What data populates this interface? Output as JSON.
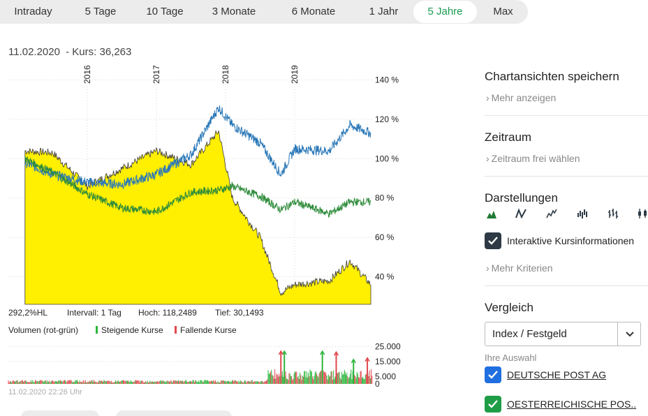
{
  "tabs": [
    {
      "label": "Intraday",
      "active": false
    },
    {
      "label": "5 Tage",
      "active": false
    },
    {
      "label": "10 Tage",
      "active": false
    },
    {
      "label": "3 Monate",
      "active": false
    },
    {
      "label": "6 Monate",
      "active": false
    },
    {
      "label": "1 Jahr",
      "active": false
    },
    {
      "label": "5 Jahre",
      "active": true
    },
    {
      "label": "Max",
      "active": false
    }
  ],
  "header": {
    "date": "11.02.2020",
    "kurs": "- Kurs: 36,263"
  },
  "stats": {
    "hl": "292,2%HL",
    "intervall": "Intervall: 1 Tag",
    "hoch": "Hoch: 118,2489",
    "tief": "Tief: 30,1493"
  },
  "volume_legend": {
    "title": "Volumen (rot-grün)",
    "rising": "Steigende Kurse",
    "falling": "Fallende Kurse"
  },
  "timestamp": "11.02.2020 22:26 Uhr",
  "colors": {
    "accent_green": "#1a9a4f",
    "checkbox_dark": "#2d3a45",
    "checkbox_blue": "#1f6fe0",
    "checkbox_green": "#1e9d46",
    "area_fill": "#ffef00",
    "series_blue": "#2a78b8",
    "series_green": "#2e8b3a",
    "vol_red": "#e0484f",
    "vol_green": "#2cb63c"
  },
  "chart_data": [
    {
      "type": "area",
      "subtitle": "11.02.2020 - Kurs: 36,263",
      "x_tick_labels": [
        "2016",
        "2017",
        "2018",
        "2019"
      ],
      "x": [
        2015.1,
        2015.5,
        2016.0,
        2016.5,
        2017.0,
        2017.5,
        2017.9,
        2018.1,
        2018.5,
        2018.8,
        2019.0,
        2019.5,
        2019.8,
        2020.1
      ],
      "ylim": [
        26,
        148
      ],
      "y_ticks": [
        40,
        60,
        80,
        100,
        120,
        140
      ],
      "y_tick_labels": [
        "40 %",
        "60 %",
        "80 %",
        "100 %",
        "120 %",
        "140 %"
      ],
      "series": [
        {
          "style": "yellow-area",
          "values": [
            104,
            103,
            86,
            95,
            104,
            97,
            114,
            80,
            60,
            32,
            36,
            38,
            48,
            36
          ]
        },
        {
          "style": "blue-line",
          "values": [
            98,
            92,
            88,
            87,
            92,
            102,
            126,
            117,
            108,
            92,
            105,
            104,
            117,
            113
          ]
        },
        {
          "style": "green-line",
          "values": [
            100,
            93,
            82,
            75,
            73,
            83,
            84,
            86,
            81,
            74,
            78,
            72,
            78,
            78
          ]
        }
      ]
    },
    {
      "type": "bar",
      "title": "Volumen (rot-grün)",
      "ylim": [
        0,
        30000
      ],
      "y_ticks": [
        0,
        5000,
        15000,
        25000
      ],
      "y_tick_labels": [
        "0",
        "5.000",
        "15.000",
        "25.000"
      ],
      "series": [
        {
          "name": "Steigende Kurse",
          "peaks": [
            {
              "x": 2018.85,
              "value": 21500
            },
            {
              "x": 2019.4,
              "value": 21500
            },
            {
              "x": 2019.85,
              "value": 16000
            }
          ]
        },
        {
          "name": "Fallende Kurse",
          "peaks": [
            {
              "x": 2018.8,
              "value": 21500
            },
            {
              "x": 2019.6,
              "value": 21000
            },
            {
              "x": 2020.05,
              "value": 17000
            }
          ]
        }
      ]
    }
  ],
  "sidebar": {
    "save_title": "Chartansichten speichern",
    "save_link": "Mehr anzeigen",
    "zeitraum_title": "Zeitraum",
    "zeitraum_link": "Zeitraum frei wählen",
    "darstellungen_title": "Darstellungen",
    "chart_type_icons": [
      "mountain-chart-icon",
      "line-chart-icon",
      "line-chart-alt-icon",
      "bar-chart-icon",
      "ohlc-chart-icon",
      "candlestick-chart-icon"
    ],
    "interactive_label": "Interaktive Kursinformationen",
    "mehr_kriterien": "Mehr Kriterien",
    "vergleich_title": "Vergleich",
    "vergleich_select": "Index / Festgeld",
    "ihre_auswahl": "Ihre Auswahl",
    "compare_items": [
      "DEUTSCHE POST AG",
      "OESTERREICHISCHE POS.."
    ]
  }
}
